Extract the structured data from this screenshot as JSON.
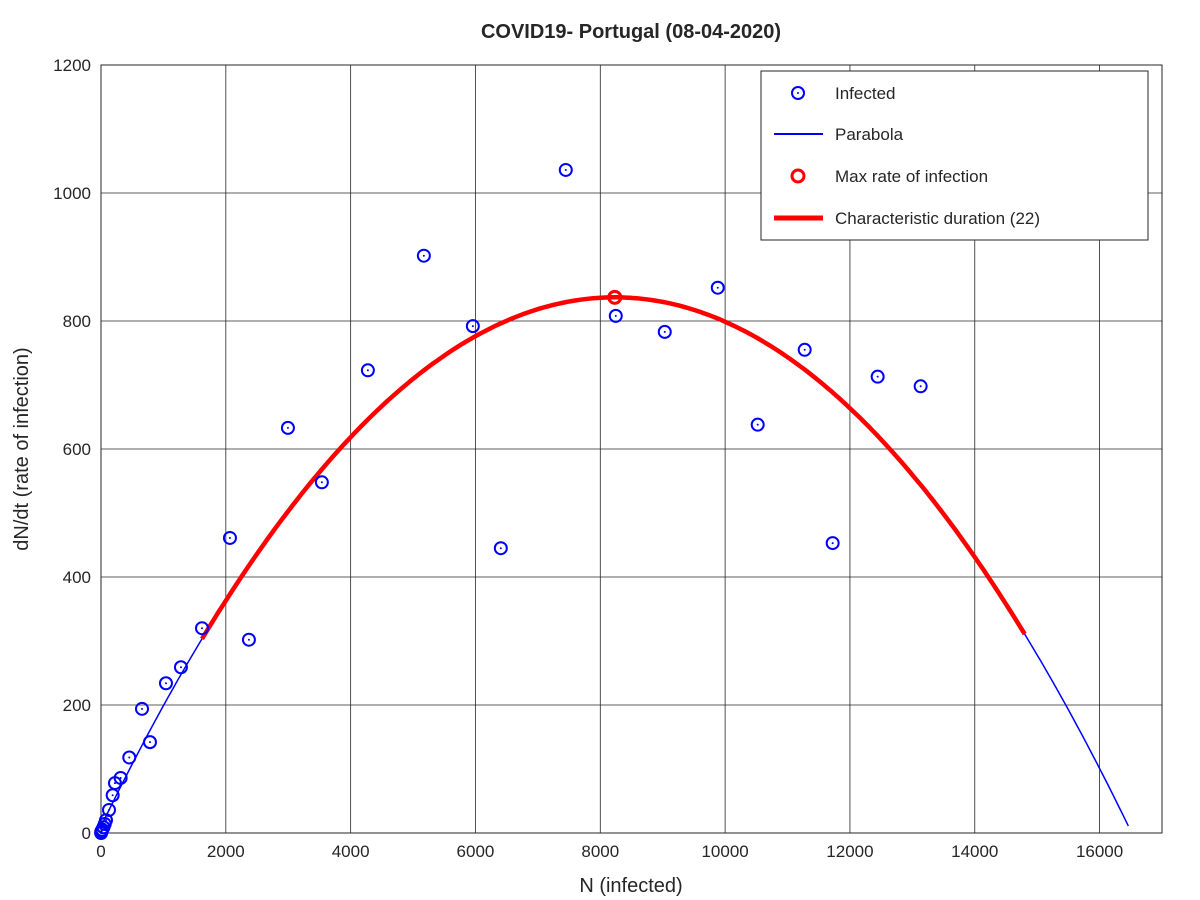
{
  "chart_data": {
    "type": "scatter",
    "title": "COVID19- Portugal (08-04-2020)",
    "xlabel": "N (infected)",
    "ylabel": "dN/dt (rate of infection)",
    "xlim": [
      0,
      17000
    ],
    "ylim": [
      0,
      1200
    ],
    "xticks": [
      0,
      2000,
      4000,
      6000,
      8000,
      10000,
      12000,
      14000,
      16000
    ],
    "yticks": [
      0,
      200,
      400,
      600,
      800,
      1000,
      1200
    ],
    "grid": true,
    "legend_position": "top-right",
    "legend": [
      "Infected",
      "Parabola",
      "Max rate of infection",
      "Characteristic duration (22)"
    ],
    "colors": {
      "infected": "#0000ff",
      "parabola": "#0000ff",
      "max": "#ff0000",
      "duration": "#ff0000"
    },
    "infected": [
      [
        2,
        0
      ],
      [
        5,
        2
      ],
      [
        10,
        3
      ],
      [
        20,
        5
      ],
      [
        40,
        9
      ],
      [
        60,
        14
      ],
      [
        80,
        20
      ],
      [
        128,
        36
      ],
      [
        187,
        59
      ],
      [
        224,
        78
      ],
      [
        315,
        86
      ],
      [
        453,
        118
      ],
      [
        657,
        194
      ],
      [
        785,
        142
      ],
      [
        1041,
        234
      ],
      [
        1281,
        259
      ],
      [
        1618,
        320
      ],
      [
        2066,
        461
      ],
      [
        2370,
        302
      ],
      [
        2995,
        633
      ],
      [
        3539,
        548
      ],
      [
        4276,
        723
      ],
      [
        5173,
        902
      ],
      [
        5958,
        792
      ],
      [
        6406,
        445
      ],
      [
        7447,
        1036
      ],
      [
        8248,
        808
      ],
      [
        9033,
        783
      ],
      [
        9882,
        852
      ],
      [
        10522,
        638
      ],
      [
        11275,
        755
      ],
      [
        11723,
        453
      ],
      [
        12444,
        713
      ],
      [
        13133,
        698
      ]
    ],
    "parabola": {
      "vertex_x": 8232,
      "vertex_y": 837,
      "curvature": -1.22e-05,
      "x_range": [
        0,
        16460
      ]
    },
    "max_rate": [
      8232,
      837
    ],
    "duration_range": [
      1618,
      14800
    ]
  }
}
